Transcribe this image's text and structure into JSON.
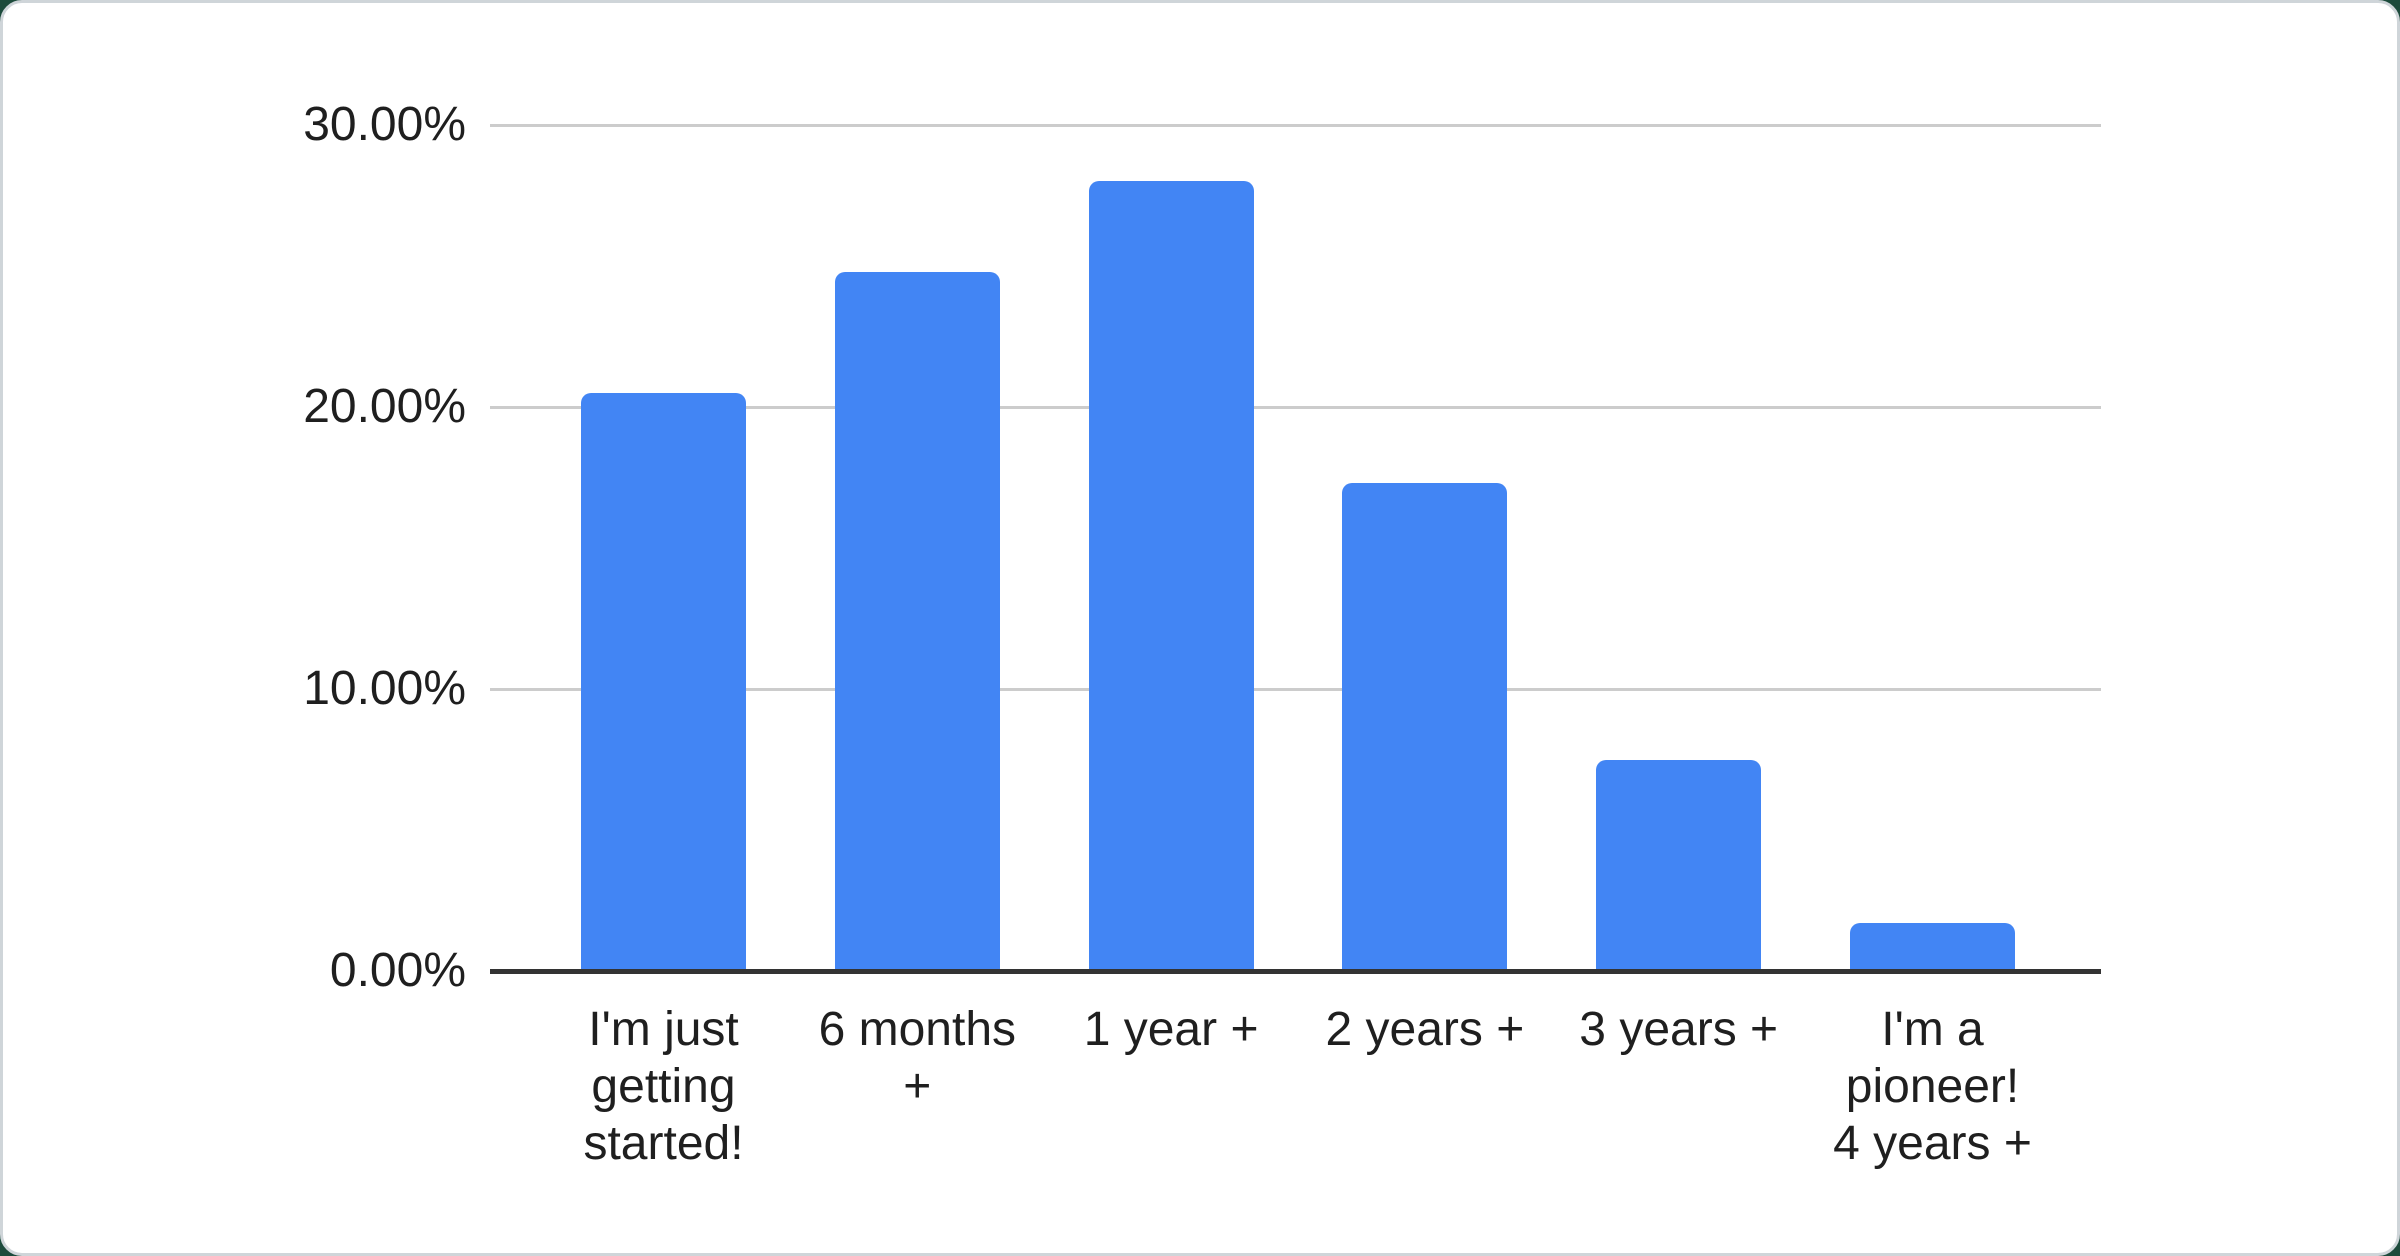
{
  "chart_data": {
    "type": "bar",
    "title": "",
    "xlabel": "",
    "ylabel": "",
    "categories": [
      "I'm just getting started!",
      "6 months +",
      "1 year +",
      "2 years +",
      "3 years +",
      "I'm a pioneer! 4 years +"
    ],
    "category_display_lines": [
      [
        "I'm just",
        "getting",
        "started!"
      ],
      [
        "6 months",
        "+"
      ],
      [
        "1 year +"
      ],
      [
        "2 years +"
      ],
      [
        "3 years +"
      ],
      [
        "I'm a",
        "pioneer!",
        "4 years +"
      ]
    ],
    "values": [
      20.5,
      24.8,
      28.0,
      17.3,
      7.5,
      1.7
    ],
    "value_unit": "%",
    "ylim": [
      0,
      30
    ],
    "ytick_values": [
      0,
      10,
      20,
      30
    ],
    "ytick_labels": [
      "0.00%",
      "10.00%",
      "20.00%",
      "30.00%"
    ],
    "grid": true,
    "legend": "none",
    "colors": {
      "bar": "#4285f4",
      "gridline": "#cccccc",
      "axis_baseline": "#333333",
      "label_text": "#1f1f1f",
      "card_background": "#ffffff",
      "card_border": "#cfd5d9",
      "page_background": "#1d4b3c"
    }
  }
}
